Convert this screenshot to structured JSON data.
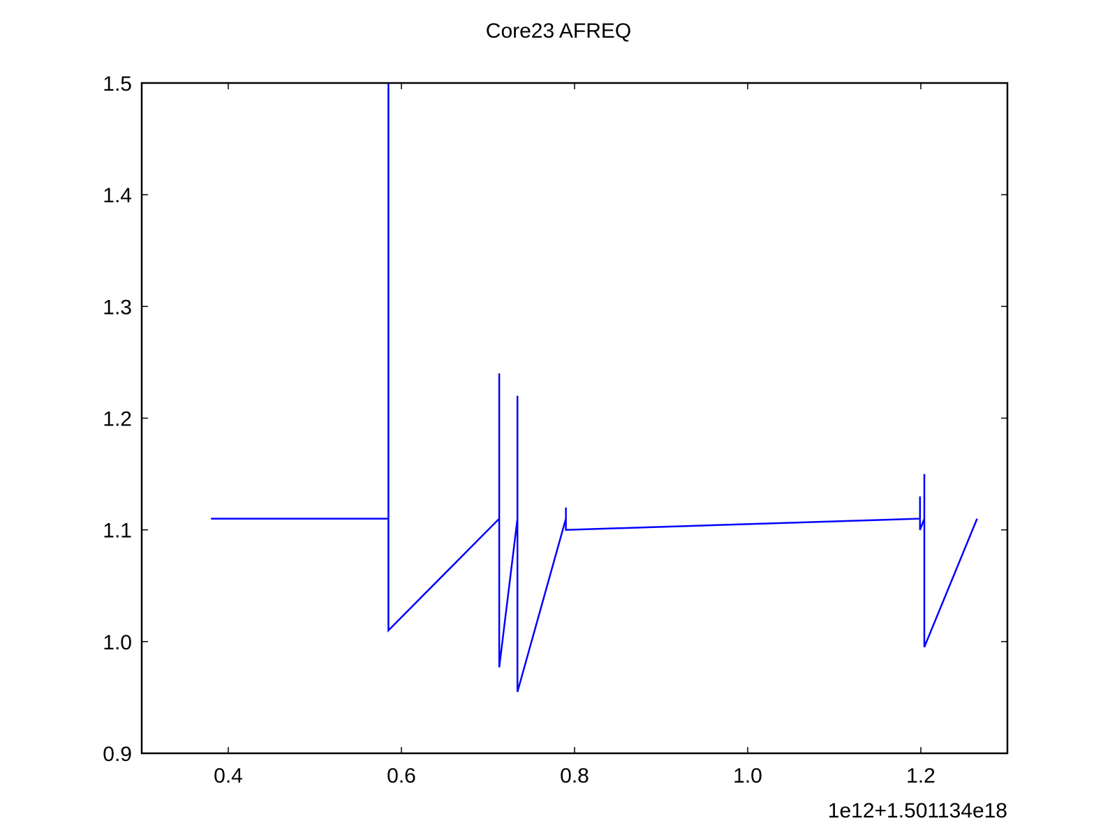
{
  "chart_data": {
    "type": "line",
    "title": "Core23 AFREQ",
    "xlabel": "",
    "ylabel": "",
    "x_offset_label": "1e12+1.501134e18",
    "xlim": [
      0.3,
      1.3
    ],
    "ylim": [
      0.9,
      1.5
    ],
    "x_ticks": [
      0.4,
      0.6,
      0.8,
      1.0,
      1.2
    ],
    "x_tick_labels": [
      "0.4",
      "0.6",
      "0.8",
      "1.0",
      "1.2"
    ],
    "y_ticks": [
      0.9,
      1.0,
      1.1,
      1.2,
      1.3,
      1.4,
      1.5
    ],
    "y_tick_labels": [
      "0.9",
      "1.0",
      "1.1",
      "1.2",
      "1.3",
      "1.4",
      "1.5"
    ],
    "grid": false,
    "legend": "none",
    "series_color": "#0000ff",
    "series": [
      {
        "x": [
          0.38,
          0.585,
          0.585,
          0.585,
          0.713,
          0.713,
          0.713,
          0.734,
          0.734,
          0.734,
          0.79,
          0.79,
          0.79,
          1.199,
          1.199,
          1.199,
          1.204,
          1.204,
          1.204,
          1.265
        ],
        "y": [
          1.11,
          1.11,
          1.5,
          1.01,
          1.11,
          1.24,
          0.977,
          1.11,
          1.22,
          0.955,
          1.11,
          1.12,
          1.1,
          1.11,
          1.13,
          1.1,
          1.11,
          1.15,
          0.995,
          1.11
        ]
      }
    ]
  }
}
